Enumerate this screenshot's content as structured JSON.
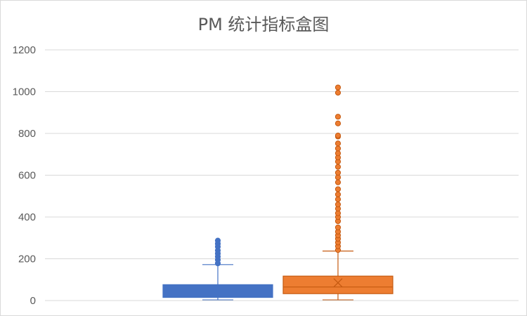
{
  "chart_data": {
    "type": "box",
    "title": "PM 统计指标盒图",
    "xlabel": "",
    "ylabel": "",
    "ylim": [
      0,
      1200
    ],
    "yticks": [
      0,
      200,
      400,
      600,
      800,
      1000,
      1200
    ],
    "grid": true,
    "legend": "none",
    "series": [
      {
        "color": "#4472c4",
        "fill": "#4472c4",
        "min": 3,
        "q1": 15,
        "median": 38,
        "mean": 52,
        "q3": 76,
        "max": 172,
        "outliers": [
          178,
          195,
          210,
          225,
          240,
          258,
          272,
          287
        ]
      },
      {
        "color": "#c55a11",
        "fill": "#ed7d31",
        "min": 3,
        "q1": 33,
        "median": 65,
        "mean": 85,
        "q3": 117,
        "max": 237,
        "outliers": [
          242,
          260,
          278,
          296,
          312,
          330,
          350,
          380,
          400,
          418,
          440,
          460,
          485,
          508,
          533,
          566,
          590,
          612,
          640,
          665,
          685,
          705,
          728,
          752,
          785,
          790,
          848,
          880,
          995,
          1020
        ]
      }
    ]
  }
}
